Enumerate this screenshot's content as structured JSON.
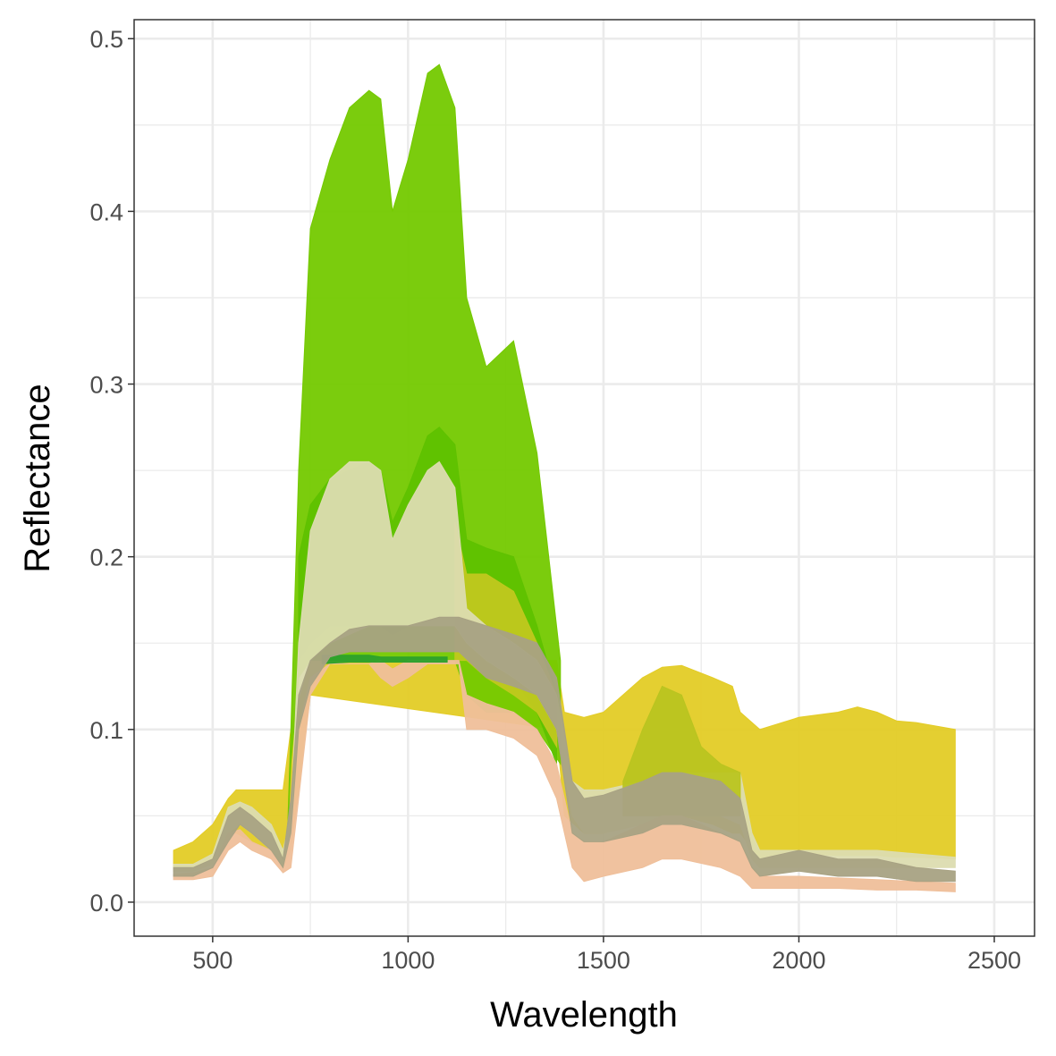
{
  "chart_data": {
    "type": "area",
    "xlabel": "Wavelength",
    "ylabel": "Reflectance",
    "xlim": [
      299,
      2603
    ],
    "ylim": [
      -0.0197,
      0.511
    ],
    "xticks": [
      500,
      1000,
      1500,
      2000,
      2500
    ],
    "xtick_labels": [
      "500",
      "1000",
      "1500",
      "2000",
      "2500"
    ],
    "yticks": [
      0,
      0.1,
      0.2,
      0.3,
      0.4,
      0.5
    ],
    "ytick_labels": [
      "0.0",
      "0.1",
      "0.2",
      "0.3",
      "0.4",
      "0.5"
    ],
    "grid": true,
    "legend": "none",
    "series": [
      {
        "color": "#e3cc26",
        "x": [
          400,
          450,
          500,
          540,
          560,
          600,
          650,
          680,
          700,
          750,
          1380,
          1400,
          1450,
          1500,
          1600,
          1650,
          1700,
          1780,
          1830,
          1850,
          1900,
          2000,
          2100,
          2150,
          2200,
          2250,
          2300,
          2400
        ],
        "upper": [
          0.03,
          0.035,
          0.045,
          0.06,
          0.065,
          0.065,
          0.065,
          0.065,
          0.1,
          0.14,
          0.14,
          0.11,
          0.107,
          0.11,
          0.13,
          0.136,
          0.137,
          0.13,
          0.125,
          0.11,
          0.1,
          0.107,
          0.11,
          0.113,
          0.11,
          0.105,
          0.104,
          0.1
        ],
        "lower": [
          0.02,
          0.02,
          0.025,
          0.04,
          0.04,
          0.035,
          0.03,
          0.02,
          0.03,
          0.12,
          0.1,
          0.05,
          0.04,
          0.04,
          0.05,
          0.05,
          0.05,
          0.045,
          0.04,
          0.04,
          0.025,
          0.028,
          0.027,
          0.027,
          0.027,
          0.026,
          0.026,
          0.025
        ]
      },
      {
        "color": "#74c900",
        "x": [
          690,
          700,
          720,
          750,
          800,
          850,
          900,
          930,
          960,
          1000,
          1050,
          1080,
          1120,
          1150,
          1200,
          1270,
          1330,
          1390
        ],
        "upper": [
          0.03,
          0.1,
          0.25,
          0.39,
          0.43,
          0.46,
          0.47,
          0.465,
          0.4,
          0.43,
          0.48,
          0.485,
          0.46,
          0.35,
          0.31,
          0.325,
          0.26,
          0.14
        ],
        "lower": [
          0.03,
          0.08,
          0.13,
          0.14,
          0.14,
          0.14,
          0.14,
          0.14,
          0.14,
          0.14,
          0.14,
          0.14,
          0.14,
          0.12,
          0.11,
          0.11,
          0.1,
          0.08
        ]
      },
      {
        "color": "#5fc100",
        "x": [
          720,
          750,
          800,
          850,
          900,
          930,
          960,
          1000,
          1050,
          1080,
          1120,
          1150,
          1200,
          1270,
          1330,
          1380
        ],
        "upper": [
          0.2,
          0.23,
          0.245,
          0.25,
          0.255,
          0.25,
          0.22,
          0.24,
          0.27,
          0.275,
          0.265,
          0.21,
          0.205,
          0.2,
          0.16,
          0.12
        ],
        "lower": [
          0.14,
          0.15,
          0.16,
          0.16,
          0.16,
          0.16,
          0.155,
          0.16,
          0.165,
          0.165,
          0.165,
          0.15,
          0.14,
          0.13,
          0.11,
          0.08
        ]
      },
      {
        "color": "#c0c81e",
        "x": [
          1120,
          1150,
          1200,
          1270,
          1330,
          1380
        ],
        "upper": [
          0.22,
          0.19,
          0.19,
          0.18,
          0.15,
          0.12
        ],
        "lower": [
          0.14,
          0.14,
          0.13,
          0.12,
          0.11,
          0.09
        ]
      },
      {
        "color": "#dcdcb0",
        "x": [
          400,
          450,
          500,
          540,
          570,
          600,
          650,
          680,
          700,
          720,
          750,
          800,
          850,
          900,
          930,
          960,
          1000,
          1050,
          1080,
          1120,
          1150,
          1200,
          1270,
          1330,
          1380,
          1420,
          1450,
          1500,
          1600,
          1650,
          1700,
          1800,
          1850,
          1880,
          1900,
          2000,
          2100,
          2200,
          2300,
          2400
        ],
        "upper": [
          0.022,
          0.022,
          0.028,
          0.055,
          0.058,
          0.055,
          0.045,
          0.03,
          0.05,
          0.15,
          0.215,
          0.245,
          0.255,
          0.255,
          0.25,
          0.21,
          0.23,
          0.25,
          0.255,
          0.24,
          0.17,
          0.16,
          0.15,
          0.14,
          0.12,
          0.07,
          0.065,
          0.065,
          0.07,
          0.075,
          0.075,
          0.075,
          0.075,
          0.04,
          0.03,
          0.03,
          0.03,
          0.03,
          0.028,
          0.026
        ],
        "lower": [
          0.018,
          0.018,
          0.022,
          0.04,
          0.045,
          0.04,
          0.03,
          0.02,
          0.03,
          0.12,
          0.14,
          0.15,
          0.155,
          0.16,
          0.16,
          0.16,
          0.16,
          0.16,
          0.16,
          0.16,
          0.15,
          0.14,
          0.13,
          0.12,
          0.1,
          0.05,
          0.04,
          0.04,
          0.045,
          0.05,
          0.05,
          0.05,
          0.045,
          0.025,
          0.02,
          0.02,
          0.02,
          0.02,
          0.02,
          0.02
        ]
      },
      {
        "color": "#b9c420",
        "x": [
          1550,
          1600,
          1650,
          1700,
          1750,
          1800,
          1850
        ],
        "upper": [
          0.07,
          0.1,
          0.125,
          0.12,
          0.09,
          0.08,
          0.075
        ],
        "lower": [
          0.05,
          0.05,
          0.05,
          0.05,
          0.05,
          0.05,
          0.05
        ]
      },
      {
        "color": "#efbf9a",
        "x": [
          400,
          450,
          500,
          540,
          570,
          600,
          650,
          680,
          700,
          720,
          750,
          800,
          900,
          930,
          960,
          1000,
          1050,
          1130,
          1150,
          1200,
          1270,
          1330,
          1380,
          1420,
          1450,
          1500,
          1600,
          1650,
          1700,
          1800,
          1850,
          1880,
          1900,
          2000,
          2100,
          2200,
          2300,
          2400
        ],
        "upper": [
          0.016,
          0.017,
          0.02,
          0.04,
          0.042,
          0.035,
          0.03,
          0.02,
          0.05,
          0.1,
          0.13,
          0.138,
          0.138,
          0.14,
          0.135,
          0.14,
          0.14,
          0.14,
          0.12,
          0.115,
          0.11,
          0.1,
          0.08,
          0.04,
          0.035,
          0.035,
          0.045,
          0.05,
          0.05,
          0.04,
          0.035,
          0.02,
          0.015,
          0.015,
          0.014,
          0.013,
          0.012,
          0.011
        ],
        "lower": [
          0.013,
          0.013,
          0.015,
          0.03,
          0.035,
          0.03,
          0.025,
          0.017,
          0.02,
          0.06,
          0.12,
          0.138,
          0.138,
          0.13,
          0.125,
          0.13,
          0.138,
          0.138,
          0.1,
          0.1,
          0.095,
          0.085,
          0.06,
          0.02,
          0.012,
          0.015,
          0.02,
          0.025,
          0.025,
          0.02,
          0.015,
          0.008,
          0.008,
          0.008,
          0.008,
          0.007,
          0.007,
          0.006
        ]
      },
      {
        "color": "#2ca02c",
        "x": [
          780,
          850,
          900,
          930,
          1050,
          1100
        ],
        "upper": [
          0.143,
          0.143,
          0.143,
          0.142,
          0.142,
          0.142
        ],
        "lower": [
          0.138,
          0.139,
          0.139,
          0.139,
          0.139,
          0.139
        ]
      },
      {
        "color": "#a8a283",
        "x": [
          400,
          450,
          500,
          540,
          570,
          600,
          650,
          680,
          700,
          720,
          750,
          800,
          850,
          900,
          1000,
          1080,
          1130,
          1200,
          1270,
          1330,
          1380,
          1420,
          1450,
          1500,
          1600,
          1650,
          1700,
          1800,
          1850,
          1880,
          1900,
          2000,
          2100,
          2200,
          2300,
          2400
        ],
        "upper": [
          0.02,
          0.02,
          0.025,
          0.05,
          0.055,
          0.05,
          0.04,
          0.025,
          0.06,
          0.12,
          0.14,
          0.15,
          0.158,
          0.16,
          0.16,
          0.165,
          0.165,
          0.16,
          0.155,
          0.15,
          0.13,
          0.07,
          0.06,
          0.062,
          0.07,
          0.075,
          0.075,
          0.07,
          0.06,
          0.03,
          0.025,
          0.03,
          0.025,
          0.025,
          0.02,
          0.018
        ],
        "lower": [
          0.015,
          0.015,
          0.02,
          0.035,
          0.045,
          0.04,
          0.03,
          0.02,
          0.04,
          0.1,
          0.125,
          0.142,
          0.145,
          0.145,
          0.145,
          0.145,
          0.145,
          0.13,
          0.125,
          0.12,
          0.1,
          0.04,
          0.035,
          0.035,
          0.04,
          0.045,
          0.045,
          0.04,
          0.035,
          0.02,
          0.015,
          0.018,
          0.015,
          0.015,
          0.012,
          0.012
        ]
      }
    ]
  }
}
